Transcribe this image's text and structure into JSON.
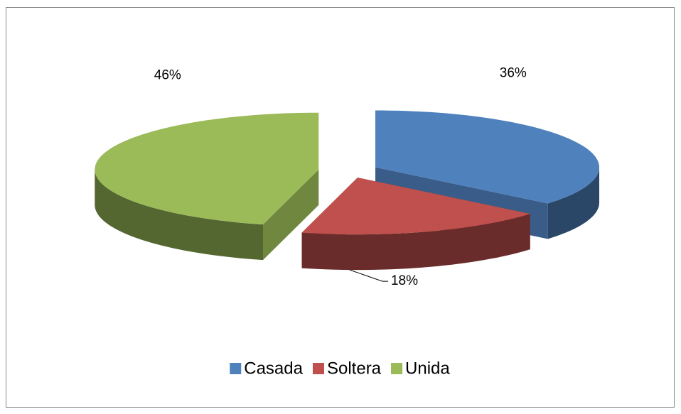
{
  "chart_data": {
    "type": "pie",
    "categories": [
      "Casada",
      "Soltera",
      "Unida"
    ],
    "values": [
      36,
      18,
      46
    ],
    "value_labels": [
      "36%",
      "18%",
      "46%"
    ],
    "colors": [
      "#4f81bd",
      "#c0504d",
      "#9bbb59"
    ],
    "legend": "bottom"
  }
}
